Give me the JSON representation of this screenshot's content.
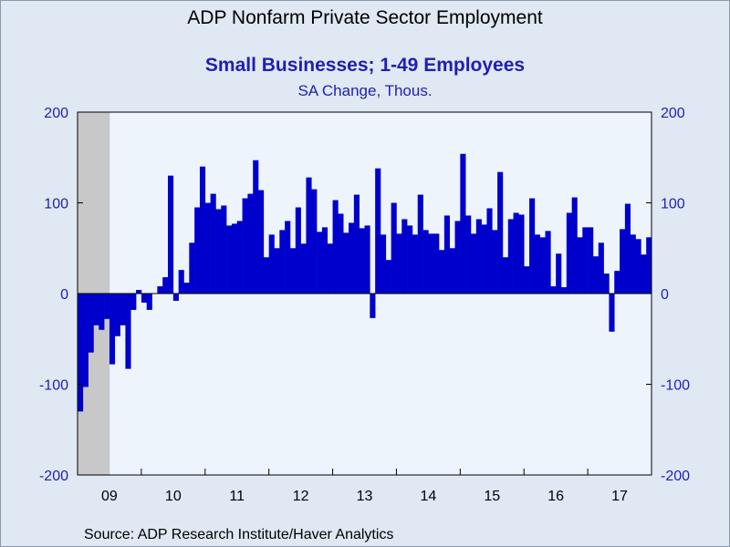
{
  "chart_data": {
    "type": "bar",
    "title": "ADP Nonfarm Private Sector Employment",
    "subtitle": "Small Businesses; 1-49 Employees",
    "unit_label": "SA Change, Thous.",
    "source": "Source:  ADP Research Institute/Haver Analytics",
    "ylim": [
      -200,
      200
    ],
    "yticks": [
      "200",
      "100",
      "0",
      "-100",
      "-200"
    ],
    "ytick_values": [
      200,
      100,
      0,
      -100,
      -200
    ],
    "x_year_labels": [
      "09",
      "10",
      "11",
      "12",
      "13",
      "14",
      "15",
      "16",
      "17"
    ],
    "start": "2009-01",
    "recession_shading_months": [
      "2009-01",
      "2009-02",
      "2009-03",
      "2009-04",
      "2009-05",
      "2009-06"
    ],
    "grid": false,
    "bar_color": "#0000cc",
    "plot_bg": "#eef4fc",
    "values": [
      -130,
      -103,
      -65,
      -35,
      -40,
      -28,
      -78,
      -47,
      -35,
      -83,
      -18,
      4,
      -10,
      -18,
      0,
      8,
      18,
      130,
      -8,
      26,
      12,
      56,
      95,
      140,
      100,
      110,
      93,
      97,
      75,
      77,
      80,
      105,
      110,
      147,
      114,
      40,
      65,
      50,
      70,
      80,
      50,
      95,
      55,
      128,
      115,
      68,
      73,
      55,
      103,
      88,
      67,
      78,
      109,
      72,
      75,
      -27,
      138,
      65,
      37,
      100,
      66,
      82,
      75,
      65,
      109,
      70,
      66,
      66,
      48,
      86,
      50,
      80,
      154,
      86,
      66,
      82,
      76,
      94,
      70,
      134,
      40,
      82,
      89,
      87,
      30,
      105,
      65,
      62,
      69,
      8,
      44,
      7,
      89,
      106,
      62,
      73,
      73,
      41,
      56,
      22,
      -42,
      25,
      71,
      99,
      65,
      60,
      43,
      62
    ]
  }
}
